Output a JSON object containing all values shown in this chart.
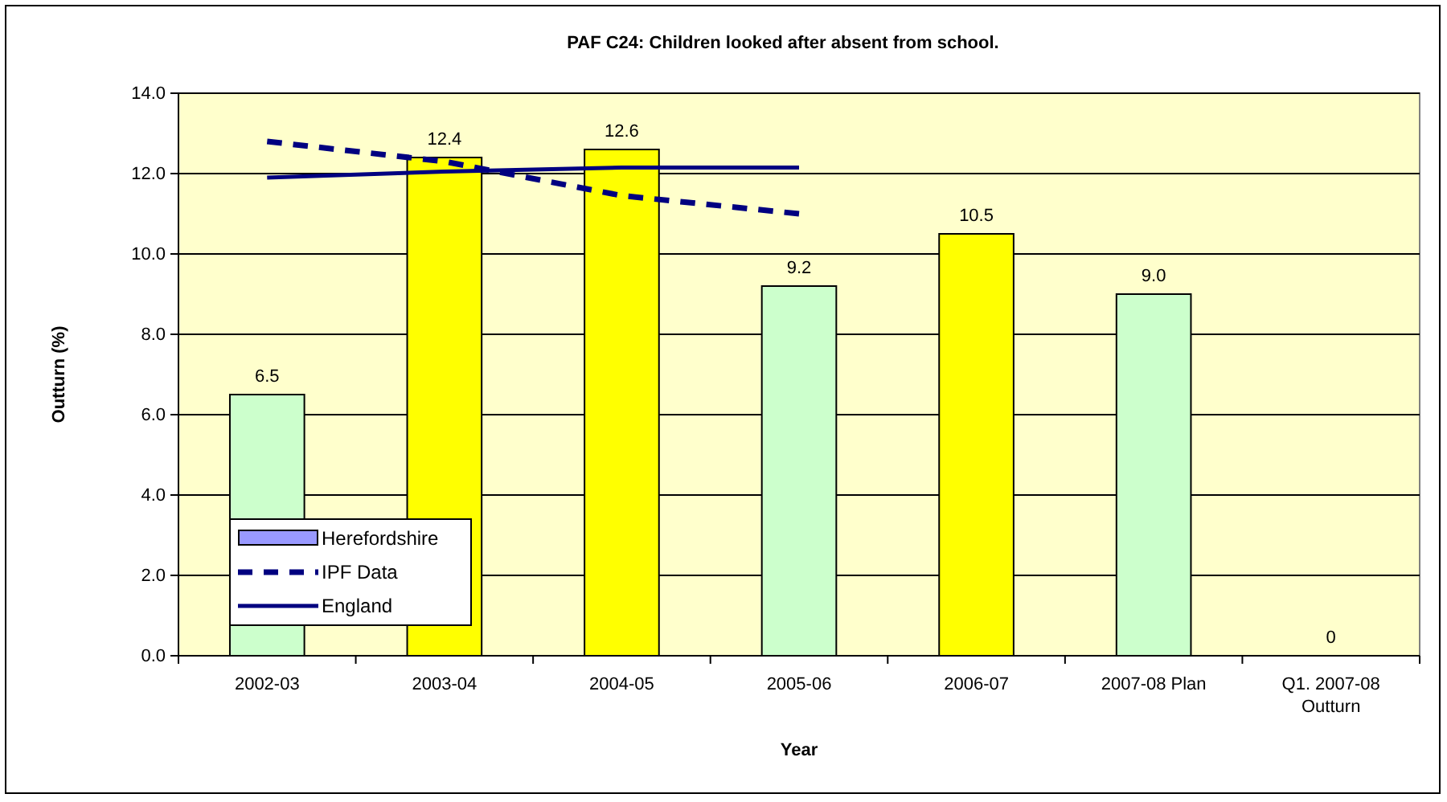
{
  "chart_data": {
    "type": "bar",
    "title": "PAF C24: Children looked after absent from school.",
    "xlabel": "Year",
    "ylabel": "Outturn (%)",
    "categories": [
      "2002-03",
      "2003-04",
      "2004-05",
      "2005-06",
      "2006-07",
      "2007-08 Plan",
      "Q1. 2007-08 Outturn"
    ],
    "series": [
      {
        "name": "Herefordshire",
        "color": "#9999ff",
        "colors": [
          "#ccffcc",
          "#ffff00",
          "#ffff00",
          "#ccffcc",
          "#ffff00",
          "#ccffcc",
          "#ccffcc"
        ],
        "values": [
          6.5,
          12.4,
          12.6,
          9.2,
          10.5,
          9.0,
          0
        ],
        "value_labels": [
          "6.5",
          "12.4",
          "12.6",
          "9.2",
          "10.5",
          "9.0",
          "0"
        ]
      },
      {
        "name": "IPF Data",
        "type": "line",
        "line_style": "dashed",
        "color": "#000080",
        "values": [
          12.8,
          12.3,
          11.45,
          11.0,
          null,
          null,
          null
        ]
      },
      {
        "name": "England",
        "type": "line",
        "line_style": "solid",
        "color": "#000080",
        "values": [
          11.9,
          12.05,
          12.15,
          12.15,
          null,
          null,
          null
        ]
      }
    ],
    "ylim": [
      0,
      14
    ],
    "yticks": [
      {
        "value": 0,
        "label": "0.0"
      },
      {
        "value": 2,
        "label": "2.0"
      },
      {
        "value": 4,
        "label": "4.0"
      },
      {
        "value": 6,
        "label": "6.0"
      },
      {
        "value": 8,
        "label": "8.0"
      },
      {
        "value": 10,
        "label": "10.0"
      },
      {
        "value": 12,
        "label": "12.0"
      },
      {
        "value": 14,
        "label": "14.0"
      }
    ],
    "grid": "y",
    "legend": "bottom left",
    "marker": "none"
  }
}
